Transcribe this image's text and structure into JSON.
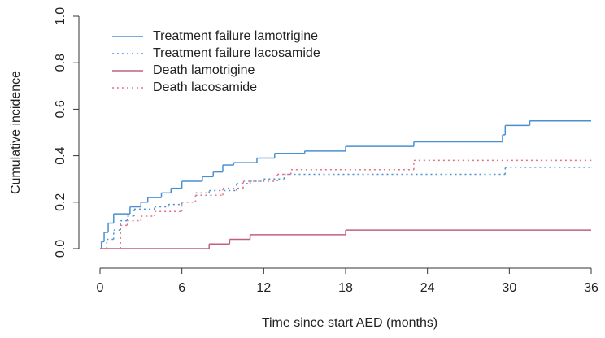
{
  "chart_data": {
    "type": "step",
    "xlabel": "Time since start AED (months)",
    "ylabel": "Cumulative incidence",
    "xlim": [
      0,
      36
    ],
    "xticks": [
      0,
      6,
      12,
      18,
      24,
      30,
      36
    ],
    "ylim": [
      0,
      1
    ],
    "yticks": [
      {
        "value": 0,
        "label": "0.0"
      },
      {
        "value": 0.2,
        "label": "0.2"
      },
      {
        "value": 0.4,
        "label": "0.4"
      },
      {
        "value": 0.6,
        "label": "0.6"
      },
      {
        "value": 0.8,
        "label": "0.8"
      },
      {
        "value": 1,
        "label": "1.0"
      }
    ],
    "legend": "top-left",
    "series": [
      {
        "name": "Treatment failure lamotrigine",
        "color": "#4a90d0",
        "dash": "solid",
        "x": [
          0,
          0.1,
          0.3,
          0.6,
          1,
          2.2,
          3,
          3.5,
          4.5,
          5.2,
          6,
          7.5,
          8.3,
          9,
          9.8,
          11.5,
          12.8,
          15,
          18,
          23,
          29.5,
          29.7,
          31.5,
          36
        ],
        "values": [
          0,
          0.03,
          0.07,
          0.11,
          0.15,
          0.18,
          0.2,
          0.22,
          0.24,
          0.26,
          0.29,
          0.31,
          0.33,
          0.36,
          0.37,
          0.39,
          0.41,
          0.42,
          0.44,
          0.46,
          0.49,
          0.53,
          0.55,
          0.55
        ]
      },
      {
        "name": "Treatment failure lacosamide",
        "color": "#4a90d0",
        "dash": "dotted",
        "x": [
          0,
          0.5,
          1,
          1.5,
          2,
          2.5,
          4,
          5,
          6,
          7,
          8,
          10,
          11,
          12,
          13.5,
          29.7,
          36
        ],
        "values": [
          0,
          0.04,
          0.08,
          0.12,
          0.14,
          0.17,
          0.18,
          0.19,
          0.2,
          0.24,
          0.25,
          0.28,
          0.29,
          0.3,
          0.32,
          0.35,
          0.35
        ]
      },
      {
        "name": "Death lamotrigine",
        "color": "#c0607a",
        "dash": "solid",
        "x": [
          0,
          8,
          9.5,
          11,
          18,
          36
        ],
        "values": [
          0,
          0.02,
          0.04,
          0.06,
          0.08,
          0.08
        ]
      },
      {
        "name": "Death lacosamide",
        "color": "#e07088",
        "dash": "dotted",
        "x": [
          0,
          1.5,
          2,
          3,
          4,
          6,
          7,
          9,
          10.5,
          13,
          14,
          23,
          36
        ],
        "values": [
          0,
          0.1,
          0.12,
          0.14,
          0.16,
          0.2,
          0.23,
          0.26,
          0.29,
          0.32,
          0.34,
          0.38,
          0.38
        ]
      }
    ]
  }
}
